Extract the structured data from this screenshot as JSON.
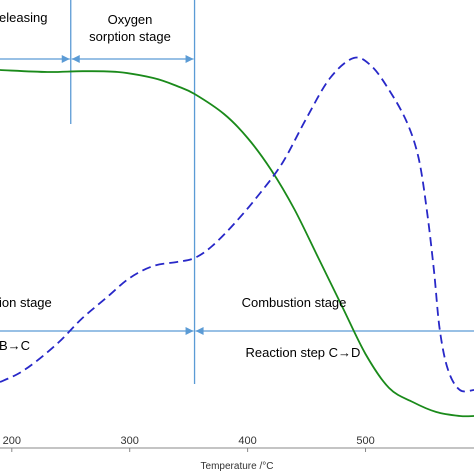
{
  "chart_data": {
    "type": "line",
    "xlabel": "Temperature /°C",
    "xlim": [
      190,
      592
    ],
    "ylim": [
      0,
      1
    ],
    "grid": false,
    "legend": "none",
    "x_ticks": [
      {
        "value": 200,
        "label": "200"
      },
      {
        "value": 300,
        "label": "300"
      },
      {
        "value": 400,
        "label": "400"
      },
      {
        "value": 500,
        "label": "500"
      }
    ],
    "series": [
      {
        "style": "solid",
        "color": "#1a8a1a",
        "points": [
          [
            190,
            0.9
          ],
          [
            230,
            0.895
          ],
          [
            260,
            0.897
          ],
          [
            290,
            0.895
          ],
          [
            320,
            0.88
          ],
          [
            340,
            0.86
          ],
          [
            355,
            0.84
          ],
          [
            380,
            0.79
          ],
          [
            400,
            0.73
          ],
          [
            420,
            0.65
          ],
          [
            440,
            0.55
          ],
          [
            460,
            0.43
          ],
          [
            480,
            0.31
          ],
          [
            500,
            0.19
          ],
          [
            520,
            0.105
          ],
          [
            540,
            0.07
          ],
          [
            560,
            0.045
          ],
          [
            580,
            0.035
          ],
          [
            592,
            0.035
          ]
        ]
      },
      {
        "style": "dashed",
        "color": "#2828c8",
        "points": [
          [
            190,
            0.12
          ],
          [
            205,
            0.14
          ],
          [
            220,
            0.17
          ],
          [
            240,
            0.22
          ],
          [
            260,
            0.28
          ],
          [
            280,
            0.33
          ],
          [
            300,
            0.38
          ],
          [
            320,
            0.41
          ],
          [
            340,
            0.42
          ],
          [
            355,
            0.43
          ],
          [
            370,
            0.46
          ],
          [
            390,
            0.52
          ],
          [
            410,
            0.59
          ],
          [
            430,
            0.67
          ],
          [
            450,
            0.78
          ],
          [
            470,
            0.88
          ],
          [
            490,
            0.93
          ],
          [
            505,
            0.91
          ],
          [
            520,
            0.85
          ],
          [
            535,
            0.77
          ],
          [
            545,
            0.68
          ],
          [
            552,
            0.55
          ],
          [
            558,
            0.4
          ],
          [
            563,
            0.25
          ],
          [
            570,
            0.15
          ],
          [
            580,
            0.1
          ],
          [
            592,
            0.1
          ]
        ]
      }
    ],
    "upper_dividers": [
      250,
      355
    ],
    "upper_arrow_x": 250,
    "lower_divider": 355,
    "lower_arrow_x": 355,
    "stage_labels": {
      "releasing": "eleasing",
      "oxygen_line1": "Oxygen",
      "oxygen_line2": "sorption stage",
      "ion_stage": "ion stage",
      "combustion_stage": "Combustion stage",
      "step_bc": "B→C",
      "step_cd": "Reaction step C→D"
    },
    "colors": {
      "divider": "#5b9bd5",
      "axis": "#888888"
    }
  }
}
